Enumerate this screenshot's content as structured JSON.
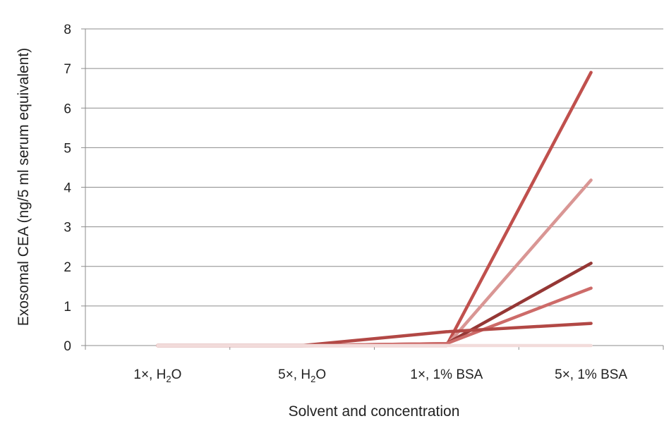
{
  "chart_data": {
    "type": "line",
    "title": "",
    "xlabel": "Solvent and concentration",
    "ylabel": "Exosomal CEA  (ng/5 ml serum equivalent)",
    "ylim": [
      0,
      8
    ],
    "yticks": [
      "0",
      "1",
      "2",
      "3",
      "4",
      "5",
      "6",
      "7",
      "8"
    ],
    "grid": true,
    "legend": "none",
    "categories": [
      {
        "main": "1×, H",
        "sub": "2",
        "tail": "O"
      },
      {
        "main": "5×, H",
        "sub": "2",
        "tail": "O"
      },
      {
        "main": "1×, 1% BSA",
        "sub": "",
        "tail": ""
      },
      {
        "main": "5×, 1% BSA",
        "sub": "",
        "tail": ""
      }
    ],
    "series": [
      {
        "color": "#c0504d",
        "values": [
          0,
          0,
          0,
          6.9
        ]
      },
      {
        "color": "#d99694",
        "values": [
          0,
          0,
          0,
          4.18
        ]
      },
      {
        "color": "#953735",
        "values": [
          0,
          0,
          0.05,
          2.08
        ]
      },
      {
        "color": "#cd6b69",
        "values": [
          0,
          0,
          0.05,
          1.45
        ]
      },
      {
        "color": "#b24845",
        "values": [
          0,
          0,
          0.35,
          0.56
        ]
      },
      {
        "color": "#f2dcdb",
        "values": [
          0,
          0,
          0,
          0
        ]
      }
    ]
  }
}
